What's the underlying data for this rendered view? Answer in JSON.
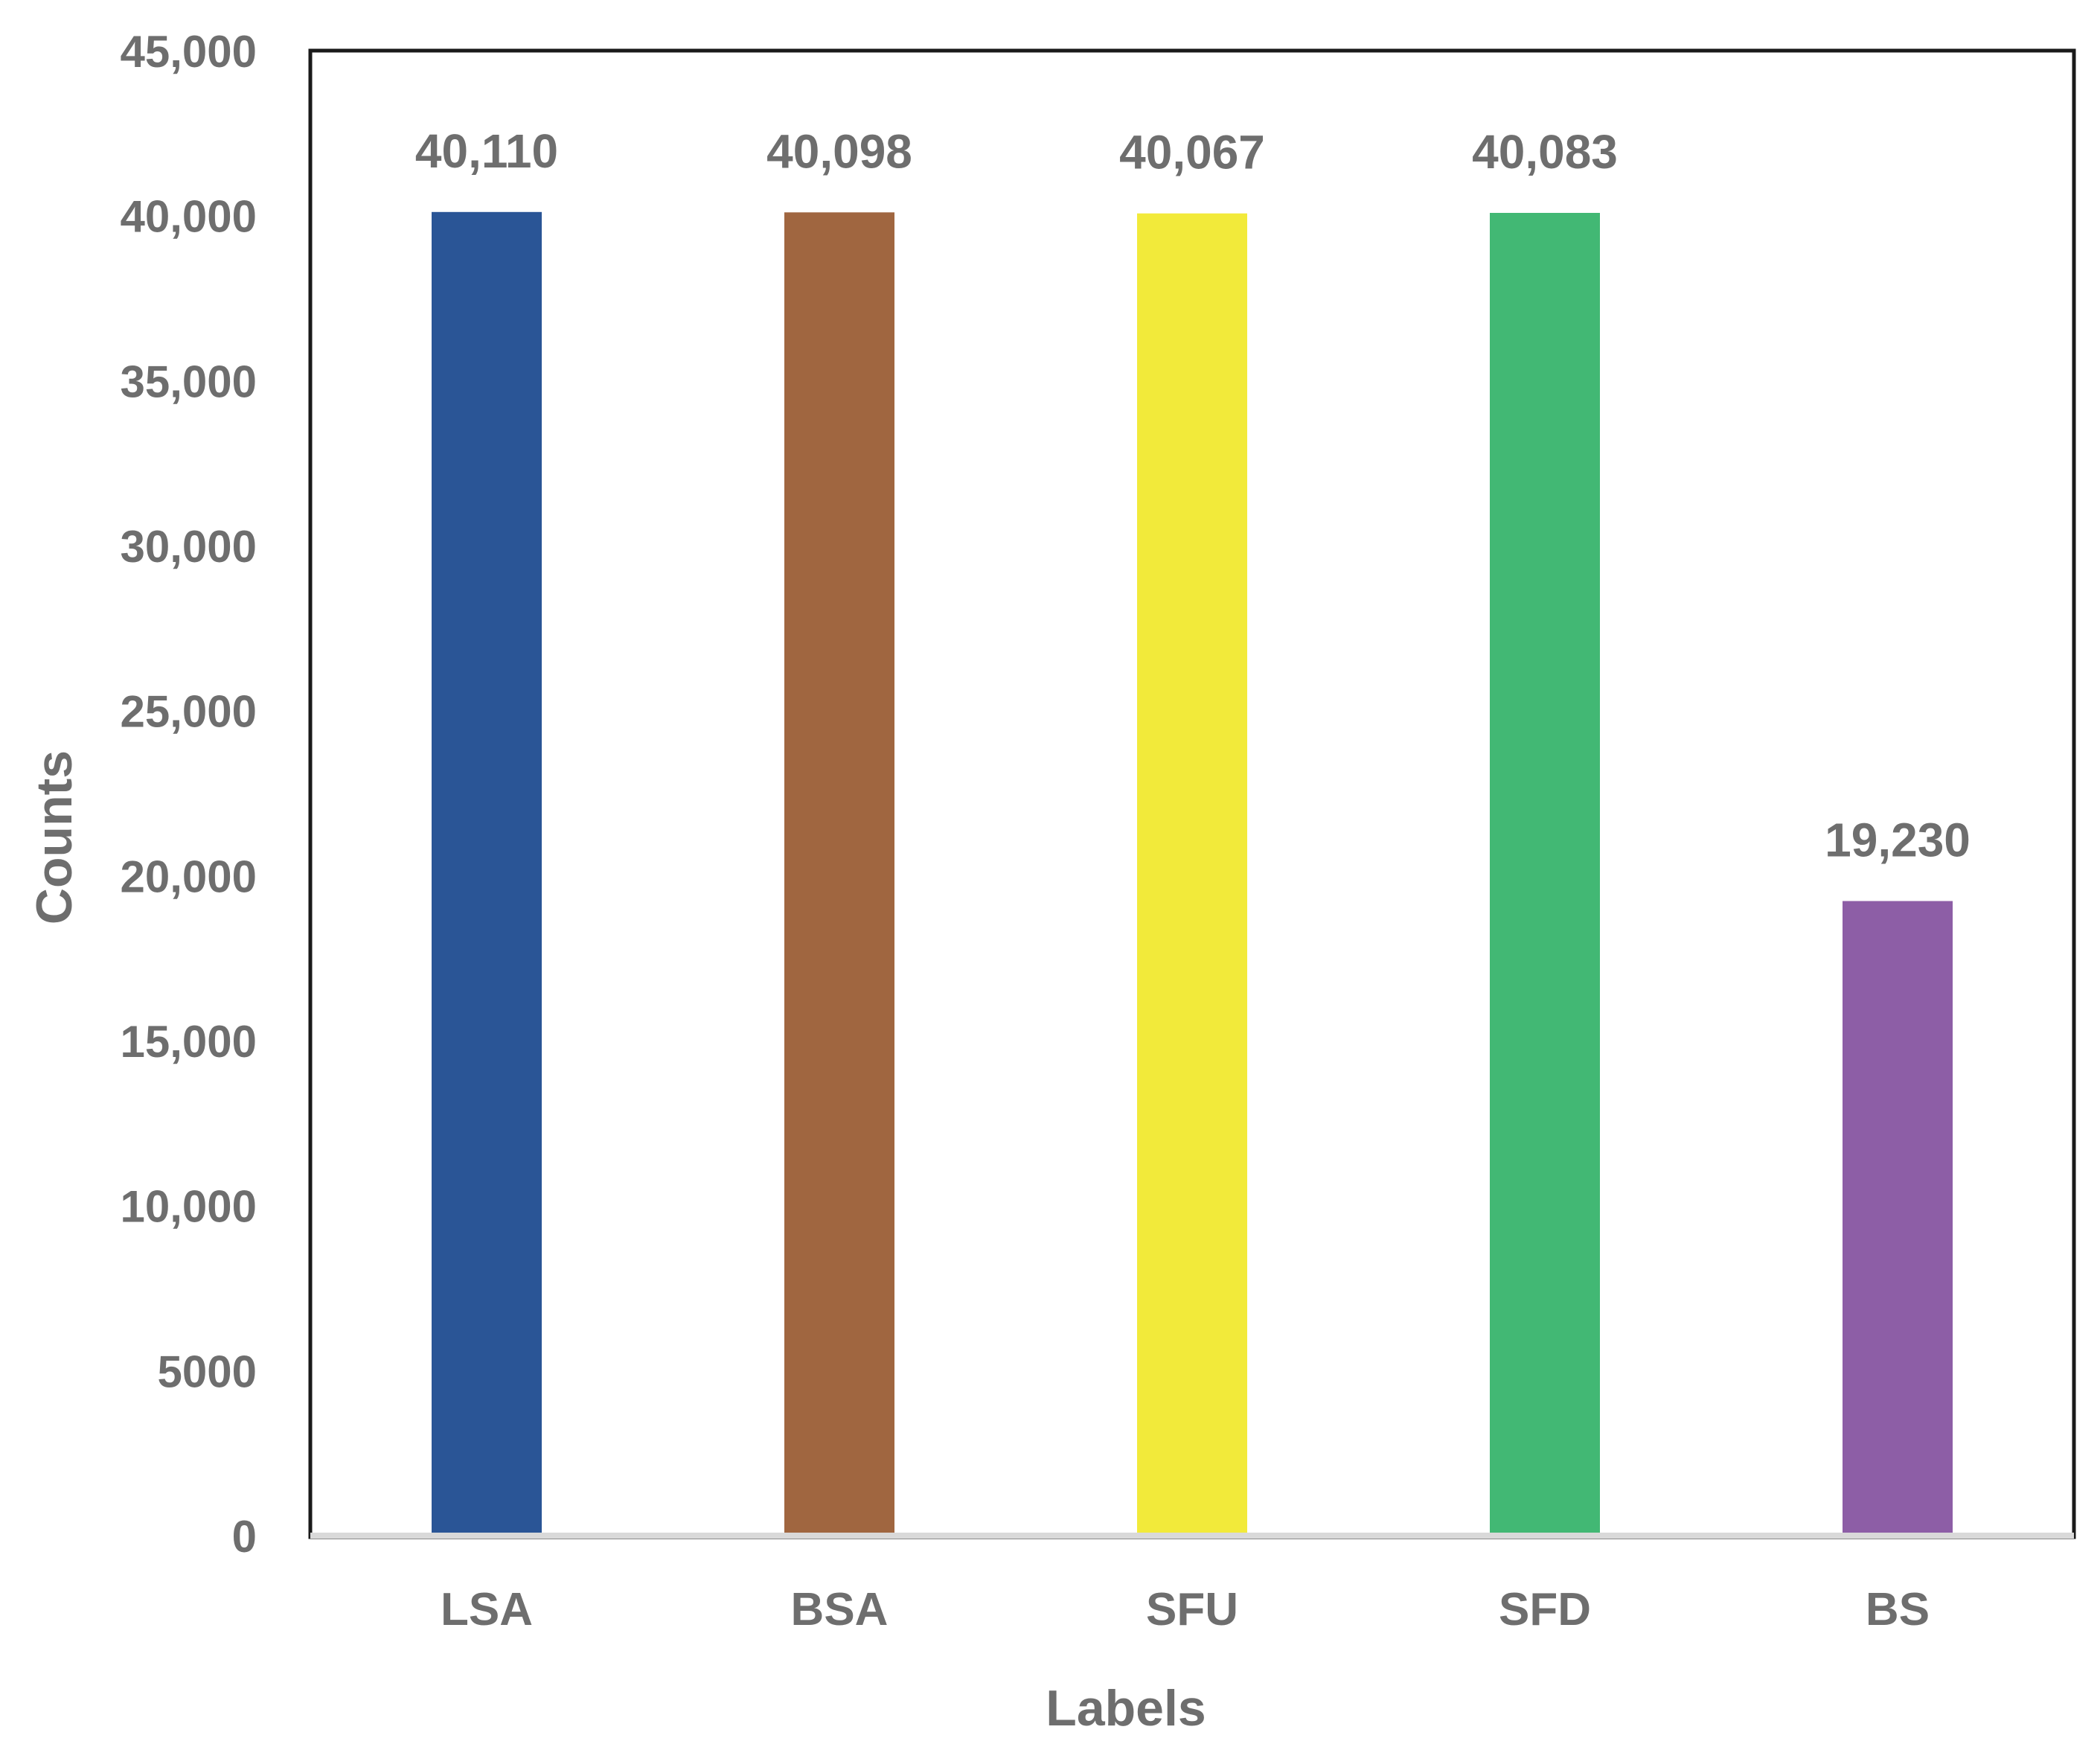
{
  "chart_data": {
    "type": "bar",
    "title": "",
    "xlabel": "Labels",
    "ylabel": "Counts",
    "categories": [
      "LSA",
      "BSA",
      "SFU",
      "SFD",
      "BS"
    ],
    "values": [
      40110,
      40098,
      40067,
      40083,
      19230
    ],
    "data_labels": [
      "40,110",
      "40,098",
      "40,067",
      "40,083",
      "19,230"
    ],
    "colors": [
      "#2a5596",
      "#a06640",
      "#f2ea3a",
      "#42b874",
      "#8d5ea6"
    ],
    "ylim": [
      0,
      45000
    ],
    "yticks": [
      0,
      5000,
      10000,
      15000,
      20000,
      25000,
      30000,
      35000,
      40000,
      45000
    ],
    "ytick_labels": [
      "0",
      "5000",
      "10,000",
      "15,000",
      "20,000",
      "25,000",
      "30,000",
      "35,000",
      "40,000",
      "45,000"
    ],
    "grid": false,
    "legend": "none",
    "text_color": "#6e6e6e",
    "frame_color": "#1a1a1a",
    "baseline_color": "#d9d9d9"
  }
}
